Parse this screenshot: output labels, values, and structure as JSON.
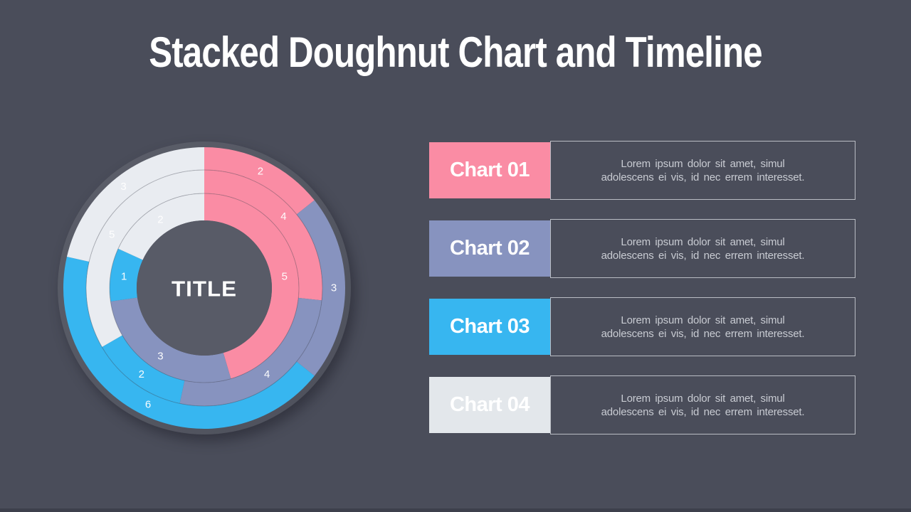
{
  "slide": {
    "title": "Stacked Doughnut Chart and Timeline",
    "background_color": "#4a4d5a",
    "bottom_bar_color": "#3d404c"
  },
  "palette": {
    "pink": "#fa8ca4",
    "periwinkle": "#8793bf",
    "blue": "#37b6f0",
    "light": "#e9ecf1"
  },
  "chart_data": {
    "type": "stacked-doughnut",
    "center_label": "TITLE",
    "start_angle_deg": 0,
    "direction": "clockwise",
    "series": [
      "Chart 01",
      "Chart 02",
      "Chart 03",
      "Chart 04"
    ],
    "segment_colors": [
      "#fa8ca4",
      "#8793bf",
      "#37b6f0",
      "#e9ecf1"
    ],
    "rings": [
      {
        "name": "inner",
        "inner_radius": 95,
        "outer_radius": 133,
        "label_radius": 114,
        "values": [
          5,
          3,
          1,
          2
        ]
      },
      {
        "name": "middle",
        "inner_radius": 133,
        "outer_radius": 166,
        "label_radius": 150,
        "values": [
          4,
          4,
          2,
          5
        ]
      },
      {
        "name": "outer",
        "inner_radius": 166,
        "outer_radius": 198,
        "label_radius": 182,
        "values": [
          2,
          3,
          6,
          3
        ]
      }
    ]
  },
  "cards": [
    {
      "label": "Chart 01",
      "color": "#fa8ca4",
      "text_lines": [
        "Lorem ipsum dolor sit amet, simul",
        "adolescens ei vis, id nec errem interesset."
      ]
    },
    {
      "label": "Chart 02",
      "color": "#8793bf",
      "text_lines": [
        "Lorem ipsum dolor sit amet, simul",
        "adolescens ei vis, id nec errem interesset."
      ]
    },
    {
      "label": "Chart 03",
      "color": "#37b6f0",
      "text_lines": [
        "Lorem ipsum dolor sit amet, simul",
        "adolescens ei vis, id nec errem interesset."
      ]
    },
    {
      "label": "Chart 04",
      "color": "#e3e7eb",
      "text_lines": [
        "Lorem ipsum dolor sit amet, simul",
        "adolescens ei vis, id nec errem interesset."
      ]
    }
  ]
}
